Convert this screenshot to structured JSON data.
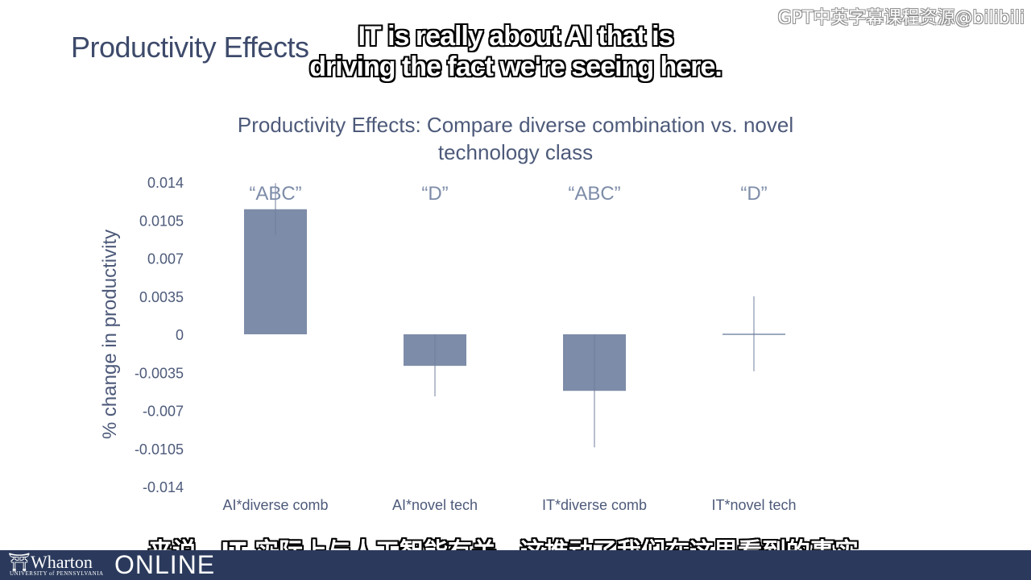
{
  "slide": {
    "title": "Productivity Effects",
    "watermark": "GPT中英字幕课程资源@bilibili"
  },
  "subtitles": {
    "english_line1": "IT is really about AI that is",
    "english_line2": "driving the fact we're seeing here.",
    "chinese": "来说，IT 实际上与人工智能有关，这推动了我们在这里看到的事实。"
  },
  "footer": {
    "brand": "Wharton",
    "university": "UNIVERSITY of PENNSYLVANIA",
    "online": "ONLINE",
    "background": "#2b3a5c"
  },
  "chart_data": {
    "type": "bar",
    "title": "Productivity Effects: Compare diverse combination vs. novel technology class",
    "title_lines": [
      "Productivity Effects: Compare diverse combination vs. novel",
      "technology class"
    ],
    "xlabel": "",
    "ylabel": "% change in productivity",
    "ylim": [
      -0.014,
      0.014
    ],
    "yticks": [
      0.014,
      0.0105,
      0.007,
      0.0035,
      0,
      -0.0035,
      -0.007,
      -0.0105,
      -0.014
    ],
    "ytick_labels": [
      "0.014",
      "0.0105",
      "0.007",
      "0.0035",
      "0",
      "-0.0035",
      "-0.007",
      "-0.0105",
      "-0.014"
    ],
    "categories": [
      "AI*diverse comb",
      "AI*novel tech",
      "IT*diverse comb",
      "IT*novel tech"
    ],
    "values": [
      0.0115,
      -0.0029,
      -0.0052,
      0.0
    ],
    "error_low": [
      0.0091,
      -0.0057,
      -0.0104,
      -0.0034
    ],
    "error_high": [
      0.0139,
      0.0,
      0.0,
      0.0035
    ],
    "annotations": [
      "“ABC”",
      "“D”",
      "“ABC”",
      "“D”"
    ],
    "bar_color": "#7d8ca8",
    "grid": false,
    "legend": "none"
  }
}
